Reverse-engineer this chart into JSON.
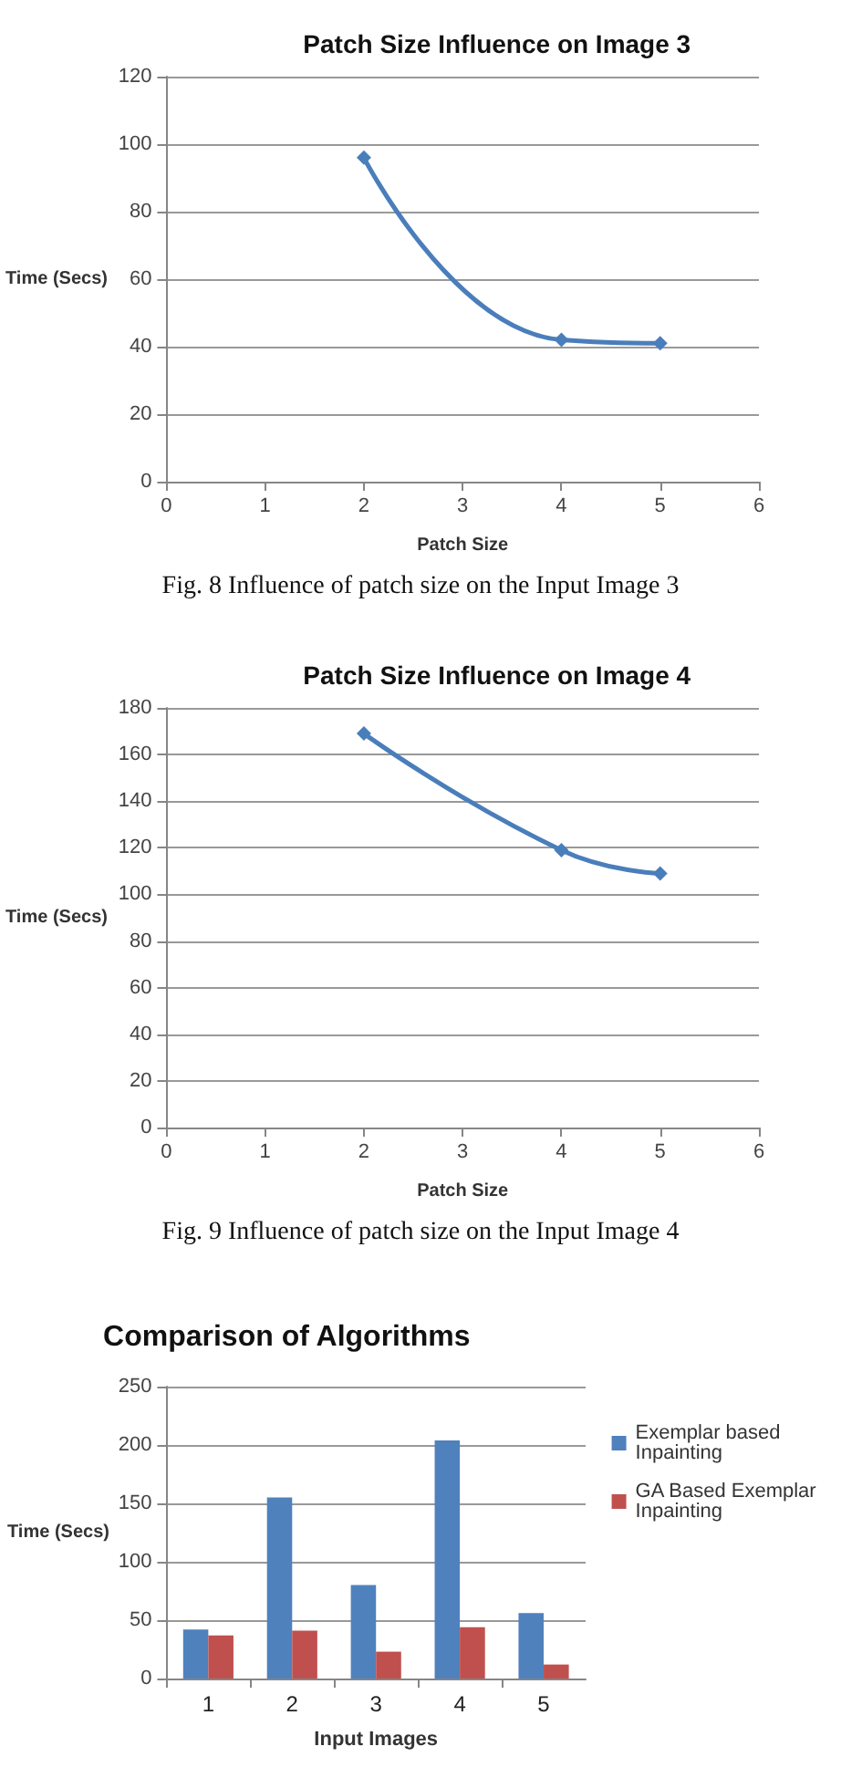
{
  "chart_data": [
    {
      "type": "line",
      "title": "Patch Size Influence on Image 3",
      "xlabel": "Patch Size",
      "ylabel": "Time (Secs)",
      "x": [
        2,
        4,
        5
      ],
      "series": [
        {
          "color": "#4a7ebb",
          "values": [
            96,
            42,
            41
          ]
        }
      ],
      "xlim": [
        0,
        6
      ],
      "xticks": [
        0,
        1,
        2,
        3,
        4,
        5,
        6
      ],
      "ylim": [
        0,
        120
      ],
      "yticks": [
        0,
        20,
        40,
        60,
        80,
        100,
        120
      ],
      "grid": "y",
      "marker": "diamond",
      "line_style": "solid",
      "legend": false,
      "annotations": [
        "Fig. 8  Influence of patch size on the Input Image 3"
      ]
    },
    {
      "type": "line",
      "title": "Patch Size Influence on Image 4",
      "xlabel": "Patch Size",
      "ylabel": "Time (Secs)",
      "x": [
        2,
        4,
        5
      ],
      "series": [
        {
          "color": "#4a7ebb",
          "values": [
            169,
            119,
            109
          ]
        }
      ],
      "xlim": [
        0,
        6
      ],
      "xticks": [
        0,
        1,
        2,
        3,
        4,
        5,
        6
      ],
      "ylim": [
        0,
        180
      ],
      "yticks": [
        0,
        20,
        40,
        60,
        80,
        100,
        120,
        140,
        160,
        180
      ],
      "grid": "y",
      "marker": "diamond",
      "line_style": "solid",
      "legend": false,
      "annotations": [
        "Fig. 9  Influence of patch size on the Input Image 4"
      ]
    },
    {
      "type": "bar",
      "title": "Comparison of Algorithms",
      "xlabel": "Input Images",
      "ylabel": "Time (Secs)",
      "categories": [
        "1",
        "2",
        "3",
        "4",
        "5"
      ],
      "series": [
        {
          "name": "Exemplar based Inpainting",
          "color": "#4f81bd",
          "values": [
            42,
            155,
            80,
            204,
            56
          ]
        },
        {
          "name": "GA Based Exemplar Inpainting",
          "color": "#c0504d",
          "values": [
            37,
            41,
            23,
            44,
            12
          ]
        }
      ],
      "ylim": [
        0,
        250
      ],
      "yticks": [
        0,
        50,
        100,
        150,
        200,
        250
      ],
      "grid": "y",
      "legend": "right"
    }
  ]
}
